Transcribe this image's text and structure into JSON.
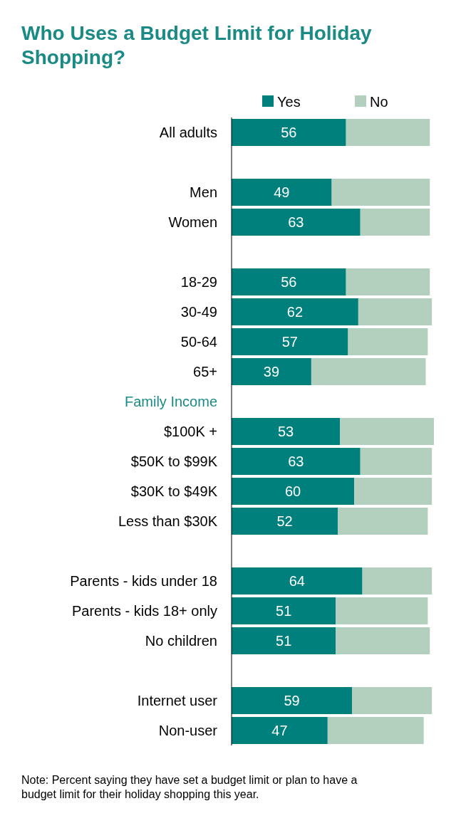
{
  "chart_data": {
    "type": "bar",
    "orientation": "horizontal",
    "stacked": true,
    "title": "Who Uses a Budget Limit for Holiday Shopping?",
    "categories": [
      "All adults",
      null,
      "Men",
      "Women",
      null,
      "18-29",
      "30-49",
      "50-64",
      "65+",
      "Family Income",
      "$100K +",
      "$50K to $99K",
      "$30K to $49K",
      "Less than $30K",
      null,
      "Parents - kids under 18",
      "Parents - kids 18+ only",
      "No children",
      null,
      "Internet user",
      "Non-user"
    ],
    "series": [
      {
        "name": "Yes",
        "color": "#00807c",
        "values": [
          56,
          null,
          49,
          63,
          null,
          56,
          62,
          57,
          39,
          null,
          53,
          63,
          60,
          52,
          null,
          64,
          51,
          51,
          null,
          59,
          47
        ],
        "value_labels": [
          "56",
          null,
          "49",
          "63",
          null,
          "56",
          "62",
          "57",
          "39",
          null,
          "53",
          "63",
          "60",
          "52",
          null,
          "64",
          "51",
          "51",
          null,
          "59",
          "47"
        ]
      },
      {
        "name": "No",
        "color": "#b3cfbe",
        "values": [
          41,
          null,
          48,
          34,
          null,
          41,
          36,
          39,
          56,
          null,
          46,
          35,
          38,
          44,
          null,
          34,
          45,
          46,
          null,
          39,
          47
        ]
      }
    ],
    "legend": "top",
    "annotations": [
      "Note: Percent saying they have set a budget limit or plan to have a budget limit for their holiday shopping this year."
    ]
  }
}
